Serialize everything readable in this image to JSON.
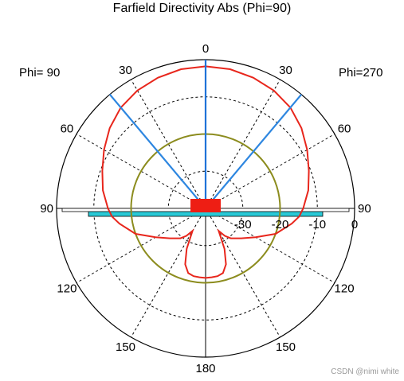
{
  "chart_data": {
    "type": "polar",
    "title": "Farfield Directivity Abs (Phi=90)",
    "phi_left_label": "Phi= 90",
    "phi_right_label": "Phi=270",
    "theta_ticks": [
      {
        "angle": 0,
        "label": "0"
      },
      {
        "angle": 30,
        "label": "30"
      },
      {
        "angle": 60,
        "label": "60"
      },
      {
        "angle": 90,
        "label": "90"
      },
      {
        "angle": 120,
        "label": "120"
      },
      {
        "angle": 150,
        "label": "150"
      },
      {
        "angle": 180,
        "label": "180"
      },
      {
        "angle": -30,
        "label": "30"
      },
      {
        "angle": -60,
        "label": "60"
      },
      {
        "angle": -90,
        "label": "90"
      },
      {
        "angle": -120,
        "label": "120"
      },
      {
        "angle": -150,
        "label": "150"
      }
    ],
    "radial_ticks": [
      -30,
      -20,
      -10,
      0
    ],
    "radial_tick_labels": [
      "-30",
      "-20",
      "-10",
      "0"
    ],
    "r_range_db": [
      -40,
      0
    ],
    "grid": true,
    "series": [
      {
        "color": "#e8261c",
        "theta": [
          0,
          10,
          20,
          30,
          40,
          50,
          60,
          70,
          80,
          90,
          95,
          100,
          110,
          120,
          130,
          140,
          145,
          150,
          155,
          160,
          165,
          170,
          175,
          180
        ],
        "r_db": [
          -1.8,
          -2.0,
          -2.6,
          -3.4,
          -4.6,
          -6.4,
          -8.5,
          -10.5,
          -12.0,
          -13.8,
          -14.8,
          -16.5,
          -20.0,
          -24.5,
          -27.5,
          -29.5,
          -31.0,
          -33.0,
          -28.0,
          -24.0,
          -22.0,
          -21.5,
          -21.4,
          -21.3
        ],
        "symmetric": true
      },
      {
        "color": "#8c8c1e",
        "constant_r_db": -20.0
      }
    ],
    "markers": [
      {
        "color": "#1f73d8",
        "theta": 0,
        "r_db": 0
      },
      {
        "color": "#2d86e0",
        "theta": 40,
        "r_db": 0
      },
      {
        "color": "#2d86e0",
        "theta": -40,
        "r_db": 0
      }
    ],
    "ground_plane_color": "#29c9d6",
    "feed_color": "#ee1e14"
  },
  "watermark": "CSDN @nimi white"
}
